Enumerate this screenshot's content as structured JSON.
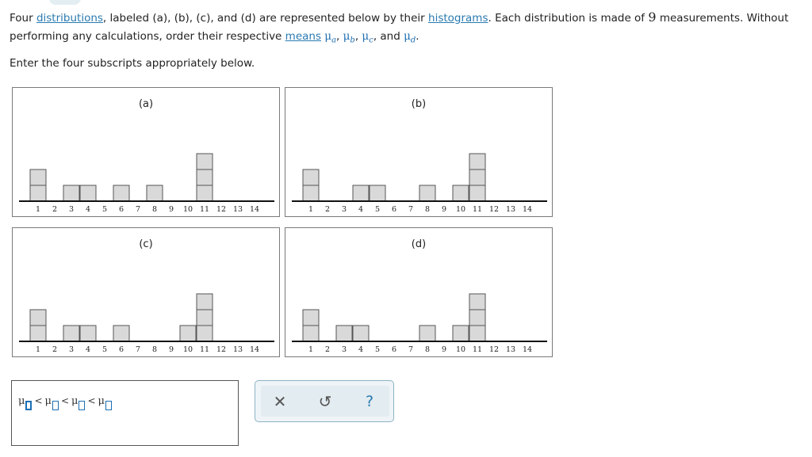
{
  "prompt": {
    "intro": "Four",
    "link_distributions": "distributions",
    "part2": ", labeled (a), (b), (c), and (d) are represented below by their",
    "link_histograms": "histograms",
    "part3": ". Each distribution is made of",
    "n": "9",
    "part4": "measurements. Without performing any calculations, order their respective",
    "link_means": "means",
    "mu": "μ",
    "sub_a": "a",
    "sub_b": "b",
    "sub_c": "c",
    "sub_d": "d",
    "and": "and"
  },
  "instruction": "Enter the four subscripts appropriately below.",
  "histograms": [
    {
      "label": "(a)",
      "counts": {
        "1": 2,
        "3": 1,
        "4": 1,
        "6": 1,
        "8": 1,
        "11": 3
      }
    },
    {
      "label": "(b)",
      "counts": {
        "1": 2,
        "4": 1,
        "5": 1,
        "8": 1,
        "10": 1,
        "11": 3
      }
    },
    {
      "label": "(c)",
      "counts": {
        "1": 2,
        "3": 1,
        "4": 1,
        "6": 1,
        "10": 1,
        "11": 3
      }
    },
    {
      "label": "(d)",
      "counts": {
        "1": 2,
        "3": 1,
        "4": 1,
        "8": 1,
        "10": 1,
        "11": 3
      }
    }
  ],
  "axis_ticks": [
    "1",
    "2",
    "3",
    "4",
    "5",
    "6",
    "7",
    "8",
    "9",
    "10",
    "11",
    "12",
    "13",
    "14"
  ],
  "answer": {
    "mu": "μ",
    "lt": "<",
    "slots": [
      "",
      "",
      "",
      ""
    ]
  },
  "toolbar": {
    "clear": "✕",
    "undo": "↺",
    "help": "?"
  },
  "colors": {
    "link": "#2a7ab0",
    "bar_fill": "#d9d9d9",
    "bar_stroke": "#555555",
    "input_border": "#1c6fb5"
  }
}
